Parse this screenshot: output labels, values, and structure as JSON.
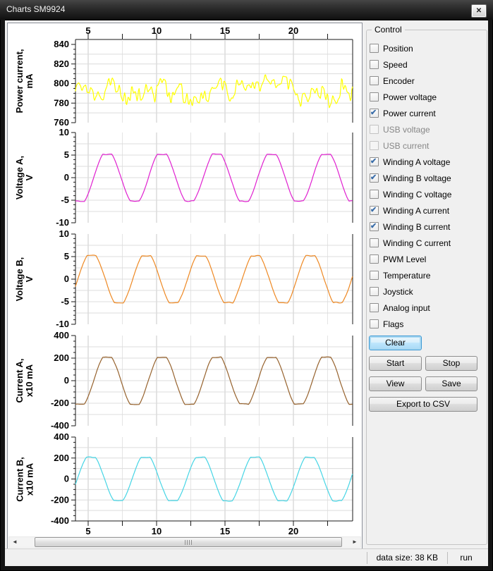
{
  "window": {
    "title": "Charts SM9924",
    "close_icon": "close"
  },
  "status_bar": {
    "data_size": "data size: 38 KB",
    "run_state": "run"
  },
  "control_panel": {
    "group_label": "Control",
    "checkboxes": [
      {
        "label": "Position",
        "checked": false,
        "enabled": true
      },
      {
        "label": "Speed",
        "checked": false,
        "enabled": true
      },
      {
        "label": "Encoder",
        "checked": false,
        "enabled": true
      },
      {
        "label": "Power voltage",
        "checked": false,
        "enabled": true
      },
      {
        "label": "Power current",
        "checked": true,
        "enabled": true
      },
      {
        "label": "USB voltage",
        "checked": false,
        "enabled": false
      },
      {
        "label": "USB current",
        "checked": false,
        "enabled": false
      },
      {
        "label": "Winding A voltage",
        "checked": true,
        "enabled": true
      },
      {
        "label": "Winding B voltage",
        "checked": true,
        "enabled": true
      },
      {
        "label": "Winding C voltage",
        "checked": false,
        "enabled": true
      },
      {
        "label": "Winding A current",
        "checked": true,
        "enabled": true
      },
      {
        "label": "Winding B current",
        "checked": true,
        "enabled": true
      },
      {
        "label": "Winding C current",
        "checked": false,
        "enabled": true
      },
      {
        "label": "PWM Level",
        "checked": false,
        "enabled": true
      },
      {
        "label": "Temperature",
        "checked": false,
        "enabled": true
      },
      {
        "label": "Joystick",
        "checked": false,
        "enabled": true
      },
      {
        "label": "Analog input",
        "checked": false,
        "enabled": true
      },
      {
        "label": "Flags",
        "checked": false,
        "enabled": true
      }
    ],
    "buttons": {
      "clear": "Clear",
      "start": "Start",
      "stop": "Stop",
      "view": "View",
      "save": "Save",
      "export": "Export to CSV"
    }
  },
  "x_axis": {
    "min": 4.07,
    "max": 24.33,
    "major_ticks": [
      5,
      10,
      15,
      20
    ],
    "tick_step": 2.5,
    "labels": [
      "5",
      "10",
      "15",
      "20"
    ]
  },
  "chart_data": [
    {
      "type": "line",
      "name": "Power current",
      "axis_label": "Power current,",
      "units": "mA",
      "color": "#ffff00",
      "ylim": [
        760,
        840
      ],
      "yticks": [
        760,
        780,
        800,
        820,
        840
      ],
      "grid_step": 10,
      "minor_step": 5,
      "waveform": {
        "kind": "noise",
        "mean": 793,
        "slow_amp": 12,
        "slow_grid": 0.55,
        "fast_amp": 8,
        "fast_grid": 0.13,
        "min": 767,
        "max": 817,
        "seed": 7
      }
    },
    {
      "type": "line",
      "name": "Voltage A",
      "axis_label": "Voltage A,",
      "units": "V",
      "color": "#e020d0",
      "ylim": [
        -10,
        10
      ],
      "yticks": [
        -10,
        -5,
        0,
        5,
        10
      ],
      "grid_step": 2.5,
      "minor_step": 1,
      "waveform": {
        "kind": "clipped_sine",
        "amplitude": 5.2,
        "period": 4,
        "peak_x": 6.4,
        "clip": 1.15,
        "noise": 0.12,
        "seed": 11
      }
    },
    {
      "type": "line",
      "name": "Voltage B",
      "axis_label": "Voltage B,",
      "units": "V",
      "color": "#ee8822",
      "ylim": [
        -10,
        10
      ],
      "yticks": [
        -10,
        -5,
        0,
        5,
        10
      ],
      "grid_step": 2.5,
      "minor_step": 1,
      "waveform": {
        "kind": "clipped_sine",
        "amplitude": 5.2,
        "period": 4,
        "peak_x": 5.25,
        "clip": 1.15,
        "noise": 0.12,
        "seed": 12
      }
    },
    {
      "type": "line",
      "name": "Current A",
      "axis_label": "Current A,",
      "units": "x10 mA",
      "color": "#96622d",
      "ylim": [
        -400,
        400
      ],
      "yticks": [
        -400,
        -200,
        0,
        200,
        400
      ],
      "grid_step": 100,
      "minor_step": 50,
      "waveform": {
        "kind": "clipped_sine",
        "amplitude": 208,
        "period": 4,
        "peak_x": 6.4,
        "clip": 1.15,
        "noise": 4,
        "seed": 13
      }
    },
    {
      "type": "line",
      "name": "Current B",
      "axis_label": "Current B,",
      "units": "x10 mA",
      "color": "#45d5e5",
      "ylim": [
        -400,
        400
      ],
      "yticks": [
        -400,
        -200,
        0,
        200,
        400
      ],
      "grid_step": 100,
      "minor_step": 50,
      "waveform": {
        "kind": "clipped_sine",
        "amplitude": 208,
        "period": 4,
        "peak_x": 5.2,
        "clip": 1.15,
        "noise": 4,
        "seed": 14
      }
    }
  ],
  "colors": {
    "titlebar_bg": "#2c2c2c",
    "client_bg": "#f0f0f0",
    "focus_border": "#3c99d4",
    "grid_major": "#c9c9c9",
    "grid_minor": "#e4e4e4",
    "axis": "#1a1a1a"
  }
}
